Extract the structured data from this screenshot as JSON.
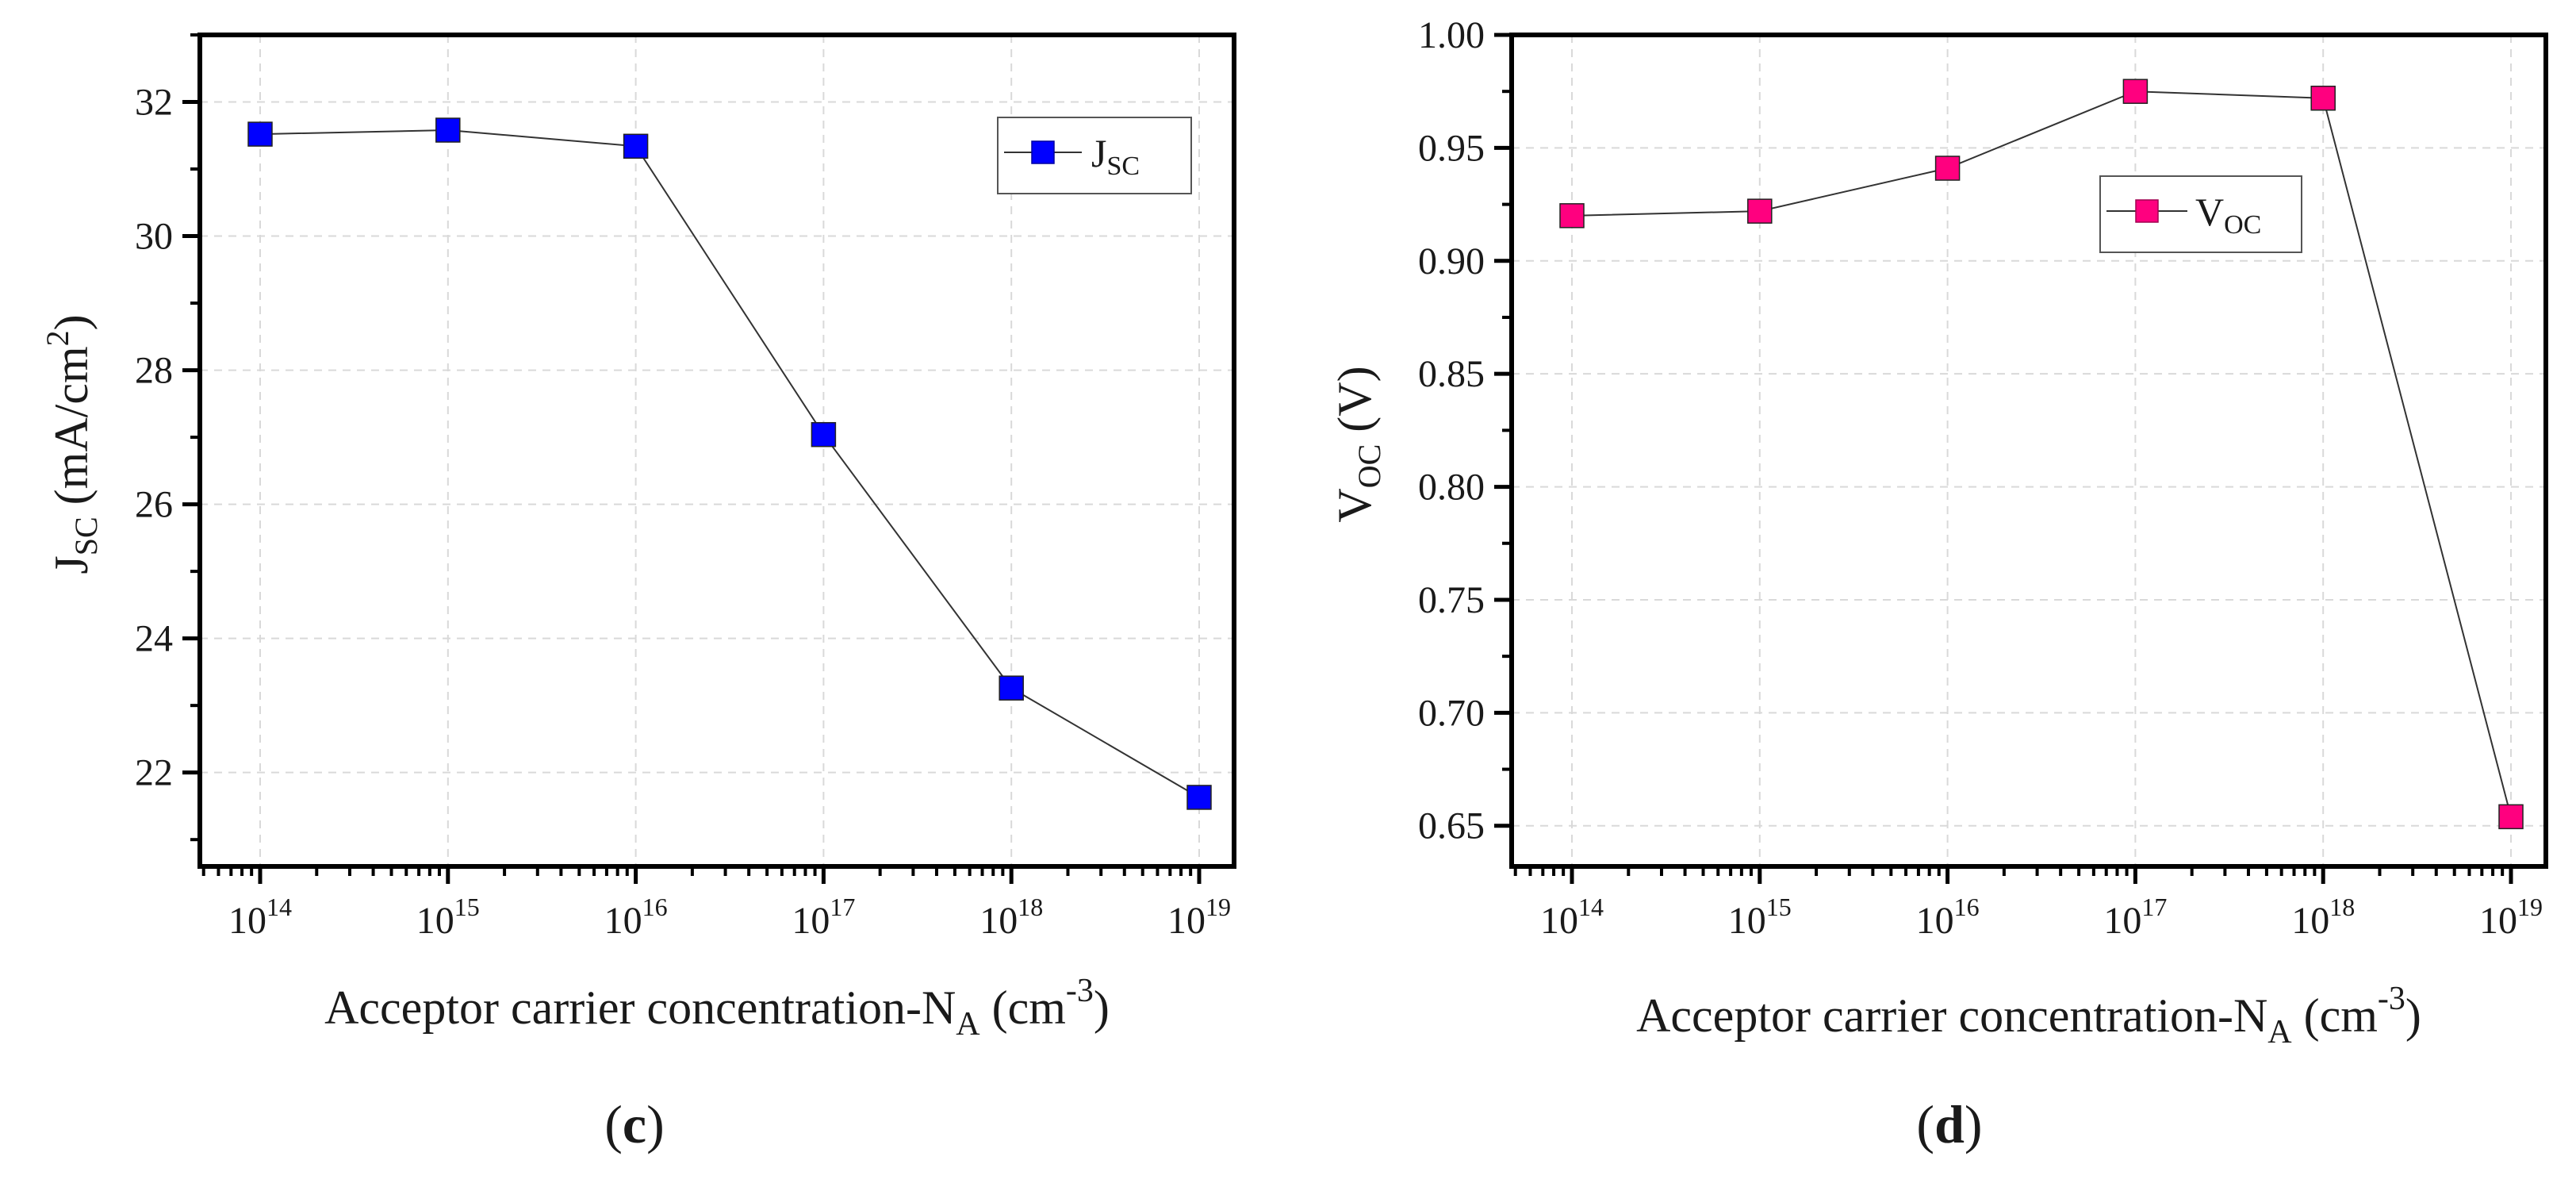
{
  "chart_data": [
    {
      "id": "c",
      "type": "line",
      "panel_label_parts": [
        "(",
        "c",
        ")"
      ],
      "x_categories": [
        "10^14",
        "10^15",
        "10^16",
        "10^17",
        "10^18",
        "10^19"
      ],
      "x_tick_labels": [
        {
          "base": "10",
          "exp": "14"
        },
        {
          "base": "10",
          "exp": "15"
        },
        {
          "base": "10",
          "exp": "16"
        },
        {
          "base": "10",
          "exp": "17"
        },
        {
          "base": "10",
          "exp": "18"
        },
        {
          "base": "10",
          "exp": "19"
        }
      ],
      "series": [
        {
          "name": "J_SC",
          "color": "#0000ff",
          "values": [
            31.52,
            31.58,
            31.34,
            27.04,
            23.26,
            21.63
          ]
        }
      ],
      "ylim": [
        20.6,
        33.0
      ],
      "y_ticks": [
        22,
        24,
        26,
        28,
        30,
        32
      ],
      "y_tick_labels": [
        "22",
        "24",
        "26",
        "28",
        "30",
        "32"
      ],
      "ylabel_parts": {
        "main": "J",
        "sub": "SC",
        "rest": " (mA/cm",
        "sup": "2",
        "close": ")"
      },
      "xlabel_parts": {
        "main": "Acceptor carrier concentration-N",
        "sub": "A",
        "rest": " (cm",
        "sup": "-3",
        "close": ")"
      },
      "legend": {
        "main": "J",
        "sub": "SC",
        "position": "top-right"
      },
      "grid": true
    },
    {
      "id": "d",
      "type": "line",
      "panel_label_parts": [
        "(",
        "d",
        ")"
      ],
      "x_categories": [
        "10^14",
        "10^15",
        "10^16",
        "10^17",
        "10^18",
        "10^19"
      ],
      "x_tick_labels": [
        {
          "base": "10",
          "exp": "14"
        },
        {
          "base": "10",
          "exp": "15"
        },
        {
          "base": "10",
          "exp": "16"
        },
        {
          "base": "10",
          "exp": "17"
        },
        {
          "base": "10",
          "exp": "18"
        },
        {
          "base": "10",
          "exp": "19"
        }
      ],
      "series": [
        {
          "name": "V_OC",
          "color": "#ff007f",
          "values": [
            0.92,
            0.922,
            0.941,
            0.975,
            0.972,
            0.654
          ]
        }
      ],
      "ylim": [
        0.632,
        1.0
      ],
      "y_ticks": [
        0.65,
        0.7,
        0.75,
        0.8,
        0.85,
        0.9,
        0.95,
        1.0
      ],
      "y_tick_labels": [
        "0.65",
        "0.70",
        "0.75",
        "0.80",
        "0.85",
        "0.90",
        "0.95",
        "1.00"
      ],
      "ylabel_parts": {
        "main": "V",
        "sub": "OC",
        "rest": " (V)"
      },
      "xlabel_parts": {
        "main": "Acceptor carrier concentration-N",
        "sub": "A",
        "rest": " (cm",
        "sup": "-3",
        "close": ")"
      },
      "legend": {
        "main": "V",
        "sub": "OC",
        "position": "top-right"
      },
      "grid": true
    }
  ]
}
